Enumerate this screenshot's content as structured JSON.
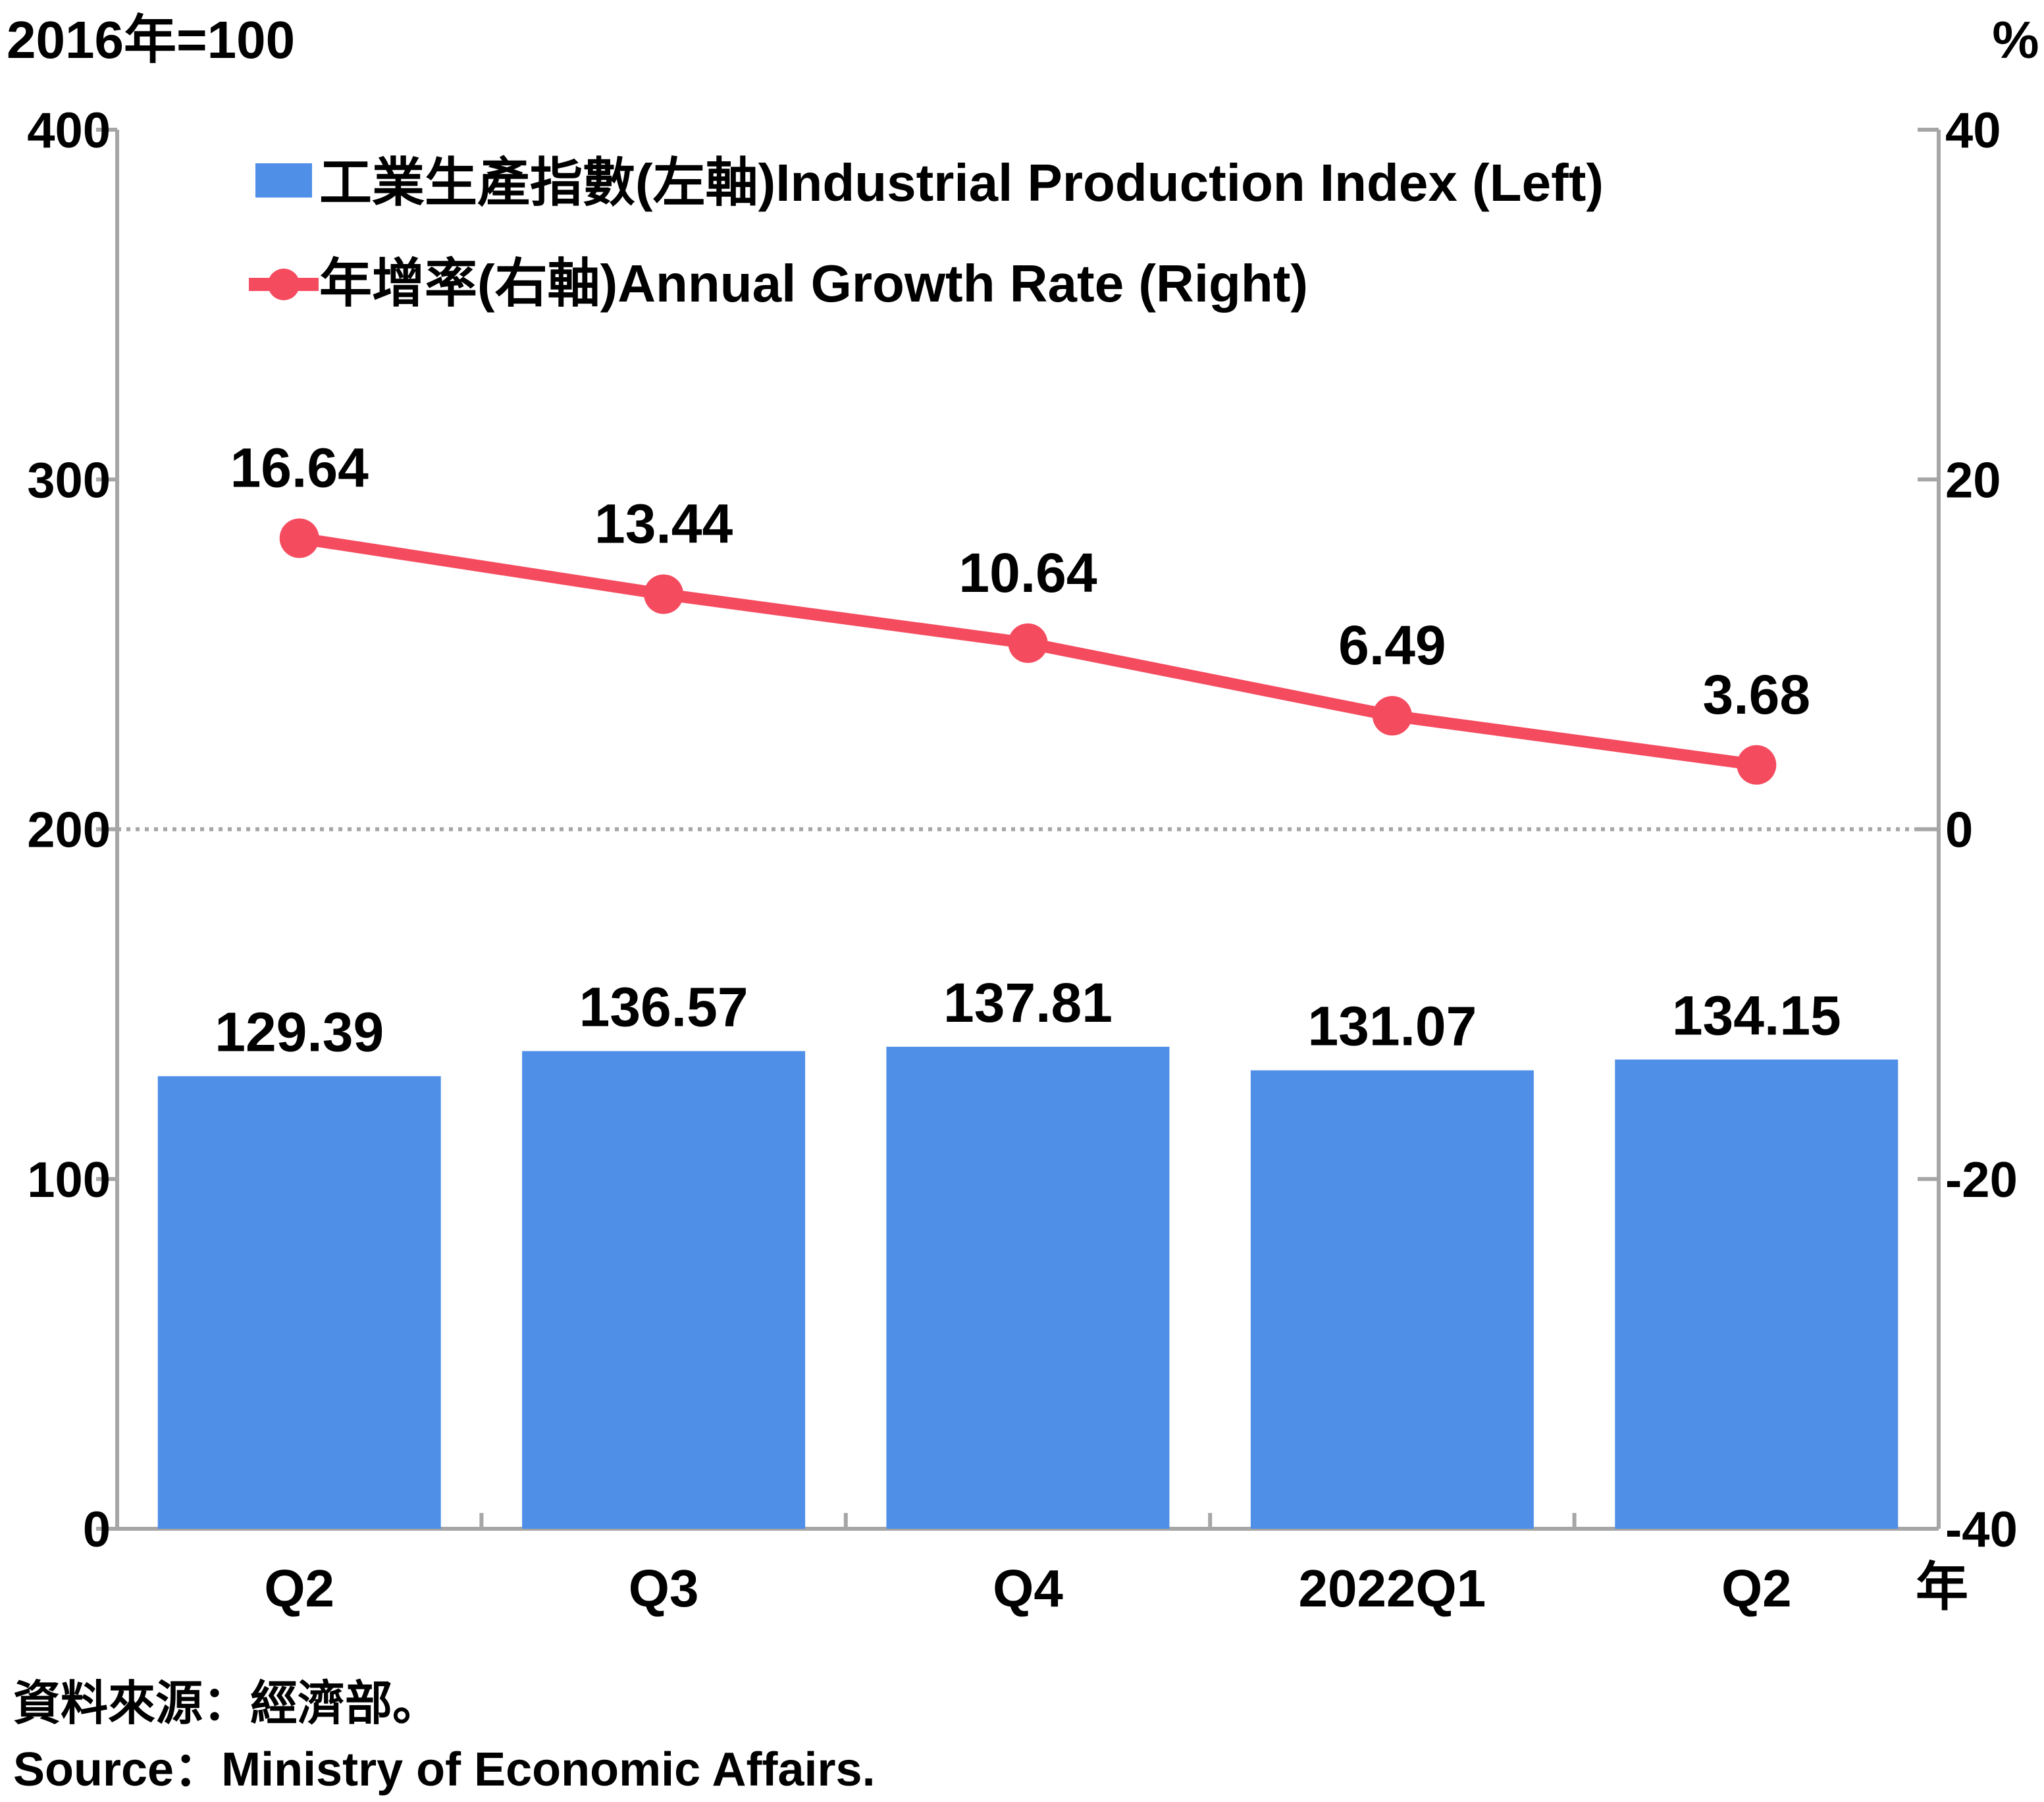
{
  "chart_data": {
    "type": "bar+line",
    "left_axis_unit": "2016年=100",
    "right_axis_unit": "%",
    "x_axis_unit": "年",
    "categories": [
      "Q2",
      "Q3",
      "Q4",
      "2022Q1",
      "Q2"
    ],
    "left_axis": {
      "ylim": [
        0,
        400
      ],
      "ticks": [
        "0",
        "100",
        "200",
        "300",
        "400"
      ]
    },
    "right_axis": {
      "ylim": [
        -40,
        40
      ],
      "ticks": [
        "-40",
        "-20",
        "0",
        "20",
        "40"
      ]
    },
    "series": [
      {
        "name": "工業生產指數(左軸)Industrial Production Index (Left)",
        "type": "bar",
        "axis": "left",
        "values": [
          129.39,
          136.57,
          137.81,
          131.07,
          134.15
        ],
        "labels": [
          "129.39",
          "136.57",
          "137.81",
          "131.07",
          "134.15"
        ],
        "color": "#4f8fe8"
      },
      {
        "name": "年增率(右軸)Annual Growth Rate (Right)",
        "type": "line",
        "axis": "right",
        "values": [
          16.64,
          13.44,
          10.64,
          6.49,
          3.68
        ],
        "labels": [
          "16.64",
          "13.44",
          "10.64",
          "6.49",
          "3.68"
        ],
        "color": "#f44b5f"
      }
    ],
    "zero_line": {
      "axis": "right",
      "value": 0,
      "style": "dotted"
    },
    "legend_position": "top-left",
    "grid": false
  },
  "source": {
    "zh": "資料來源：經濟部。",
    "en": "Source：Ministry of Economic Affairs."
  },
  "colors": {
    "bar": "#4f8fe8",
    "line": "#f44b5f",
    "axis": "#a6a6a6",
    "text": "#000000"
  }
}
